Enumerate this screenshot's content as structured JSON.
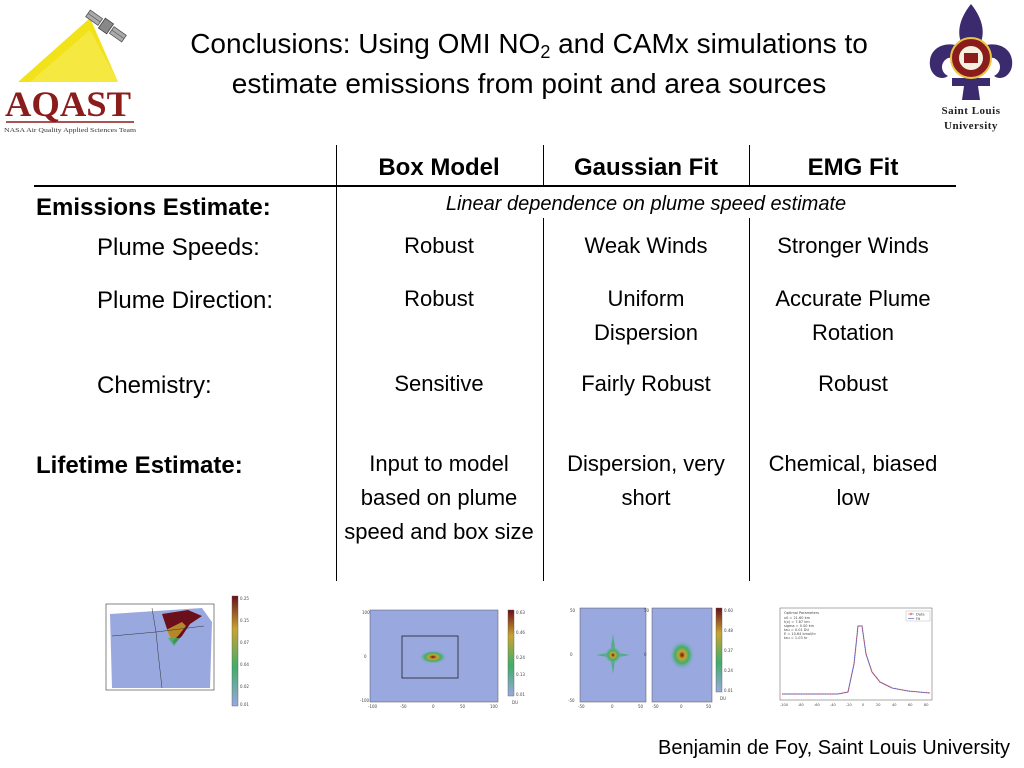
{
  "header": {
    "title_part1": "Conclusions: Using OMI NO",
    "title_sub": "2",
    "title_part2": " and CAMx simulations to",
    "title_line2": "estimate emissions from point and area sources",
    "left_logo": {
      "text": "AQAST",
      "subtext": "NASA Air Quality Applied Sciences Team",
      "colors": {
        "triangle": "#f2e21a",
        "text": "#8b1c1c"
      }
    },
    "right_logo": {
      "line1": "Saint Louis",
      "line2": "University",
      "colors": {
        "fleur": "#3b2a6e",
        "shield": "#8b1c1c"
      }
    }
  },
  "table": {
    "columns": [
      "Box Model",
      "Gaussian Fit",
      "EMG Fit"
    ],
    "emissions_label": "Emissions Estimate:",
    "emissions_note": "Linear dependence on plume speed estimate",
    "rows": [
      {
        "label": "Plume Speeds:",
        "cells": [
          "Robust",
          "Weak Winds",
          "Stronger Winds"
        ]
      },
      {
        "label": "Plume Direction:",
        "cells": [
          "Robust",
          "Uniform Dispersion",
          "Accurate Plume Rotation"
        ]
      },
      {
        "label": "Chemistry:",
        "cells": [
          "Sensitive",
          "Fairly Robust",
          "Robust"
        ]
      }
    ],
    "lifetime": {
      "label": "Lifetime Estimate:",
      "cells": [
        "Input to model based on plume speed and box size",
        "Dispersion, very short",
        "Chemical, biased low"
      ]
    }
  },
  "figures": {
    "thumb_colors": {
      "background": "#9aa8e0",
      "plume_low": "#3fae6a",
      "plume_mid": "#c9a42e",
      "plume_high": "#6b0f1a"
    },
    "legend_labels": [
      "Data",
      "Fit"
    ]
  },
  "footer": {
    "author": "Benjamin de Foy, Saint Louis University"
  }
}
